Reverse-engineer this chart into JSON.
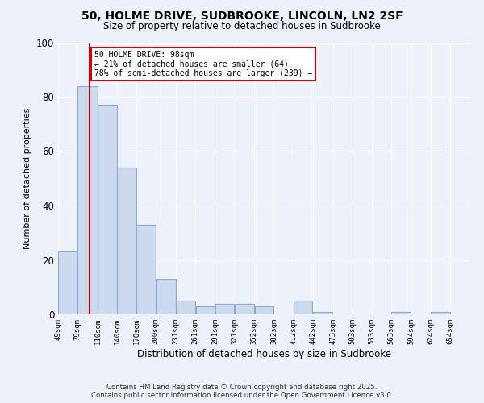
{
  "title": "50, HOLME DRIVE, SUDBROOKE, LINCOLN, LN2 2SF",
  "subtitle": "Size of property relative to detached houses in Sudbrooke",
  "xlabel": "Distribution of detached houses by size in Sudbrooke",
  "ylabel": "Number of detached properties",
  "bin_labels": [
    "49sqm",
    "79sqm",
    "110sqm",
    "140sqm",
    "170sqm",
    "200sqm",
    "231sqm",
    "261sqm",
    "291sqm",
    "321sqm",
    "352sqm",
    "382sqm",
    "412sqm",
    "442sqm",
    "473sqm",
    "503sqm",
    "533sqm",
    "563sqm",
    "594sqm",
    "624sqm",
    "654sqm"
  ],
  "bin_starts": [
    49,
    79,
    110,
    140,
    170,
    200,
    231,
    261,
    291,
    321,
    352,
    382,
    412,
    442,
    473,
    503,
    533,
    563,
    594,
    624,
    654
  ],
  "bar_heights": [
    23,
    84,
    77,
    54,
    33,
    13,
    5,
    3,
    4,
    4,
    3,
    0,
    5,
    1,
    0,
    0,
    0,
    1,
    0,
    1,
    0
  ],
  "bar_color": "#ccd9ee",
  "bar_edgecolor": "#90aad0",
  "vline_x": 98,
  "vline_color": "#cc0000",
  "ylim": [
    0,
    100
  ],
  "annotation_title": "50 HOLME DRIVE: 98sqm",
  "annotation_line2": "← 21% of detached houses are smaller (64)",
  "annotation_line3": "78% of semi-detached houses are larger (239) →",
  "annotation_box_facecolor": "#ffffff",
  "annotation_box_edgecolor": "#cc0000",
  "footer_line1": "Contains HM Land Registry data © Crown copyright and database right 2025.",
  "footer_line2": "Contains public sector information licensed under the Open Government Licence v3.0.",
  "background_color": "#edf1fa",
  "grid_color": "#ffffff"
}
